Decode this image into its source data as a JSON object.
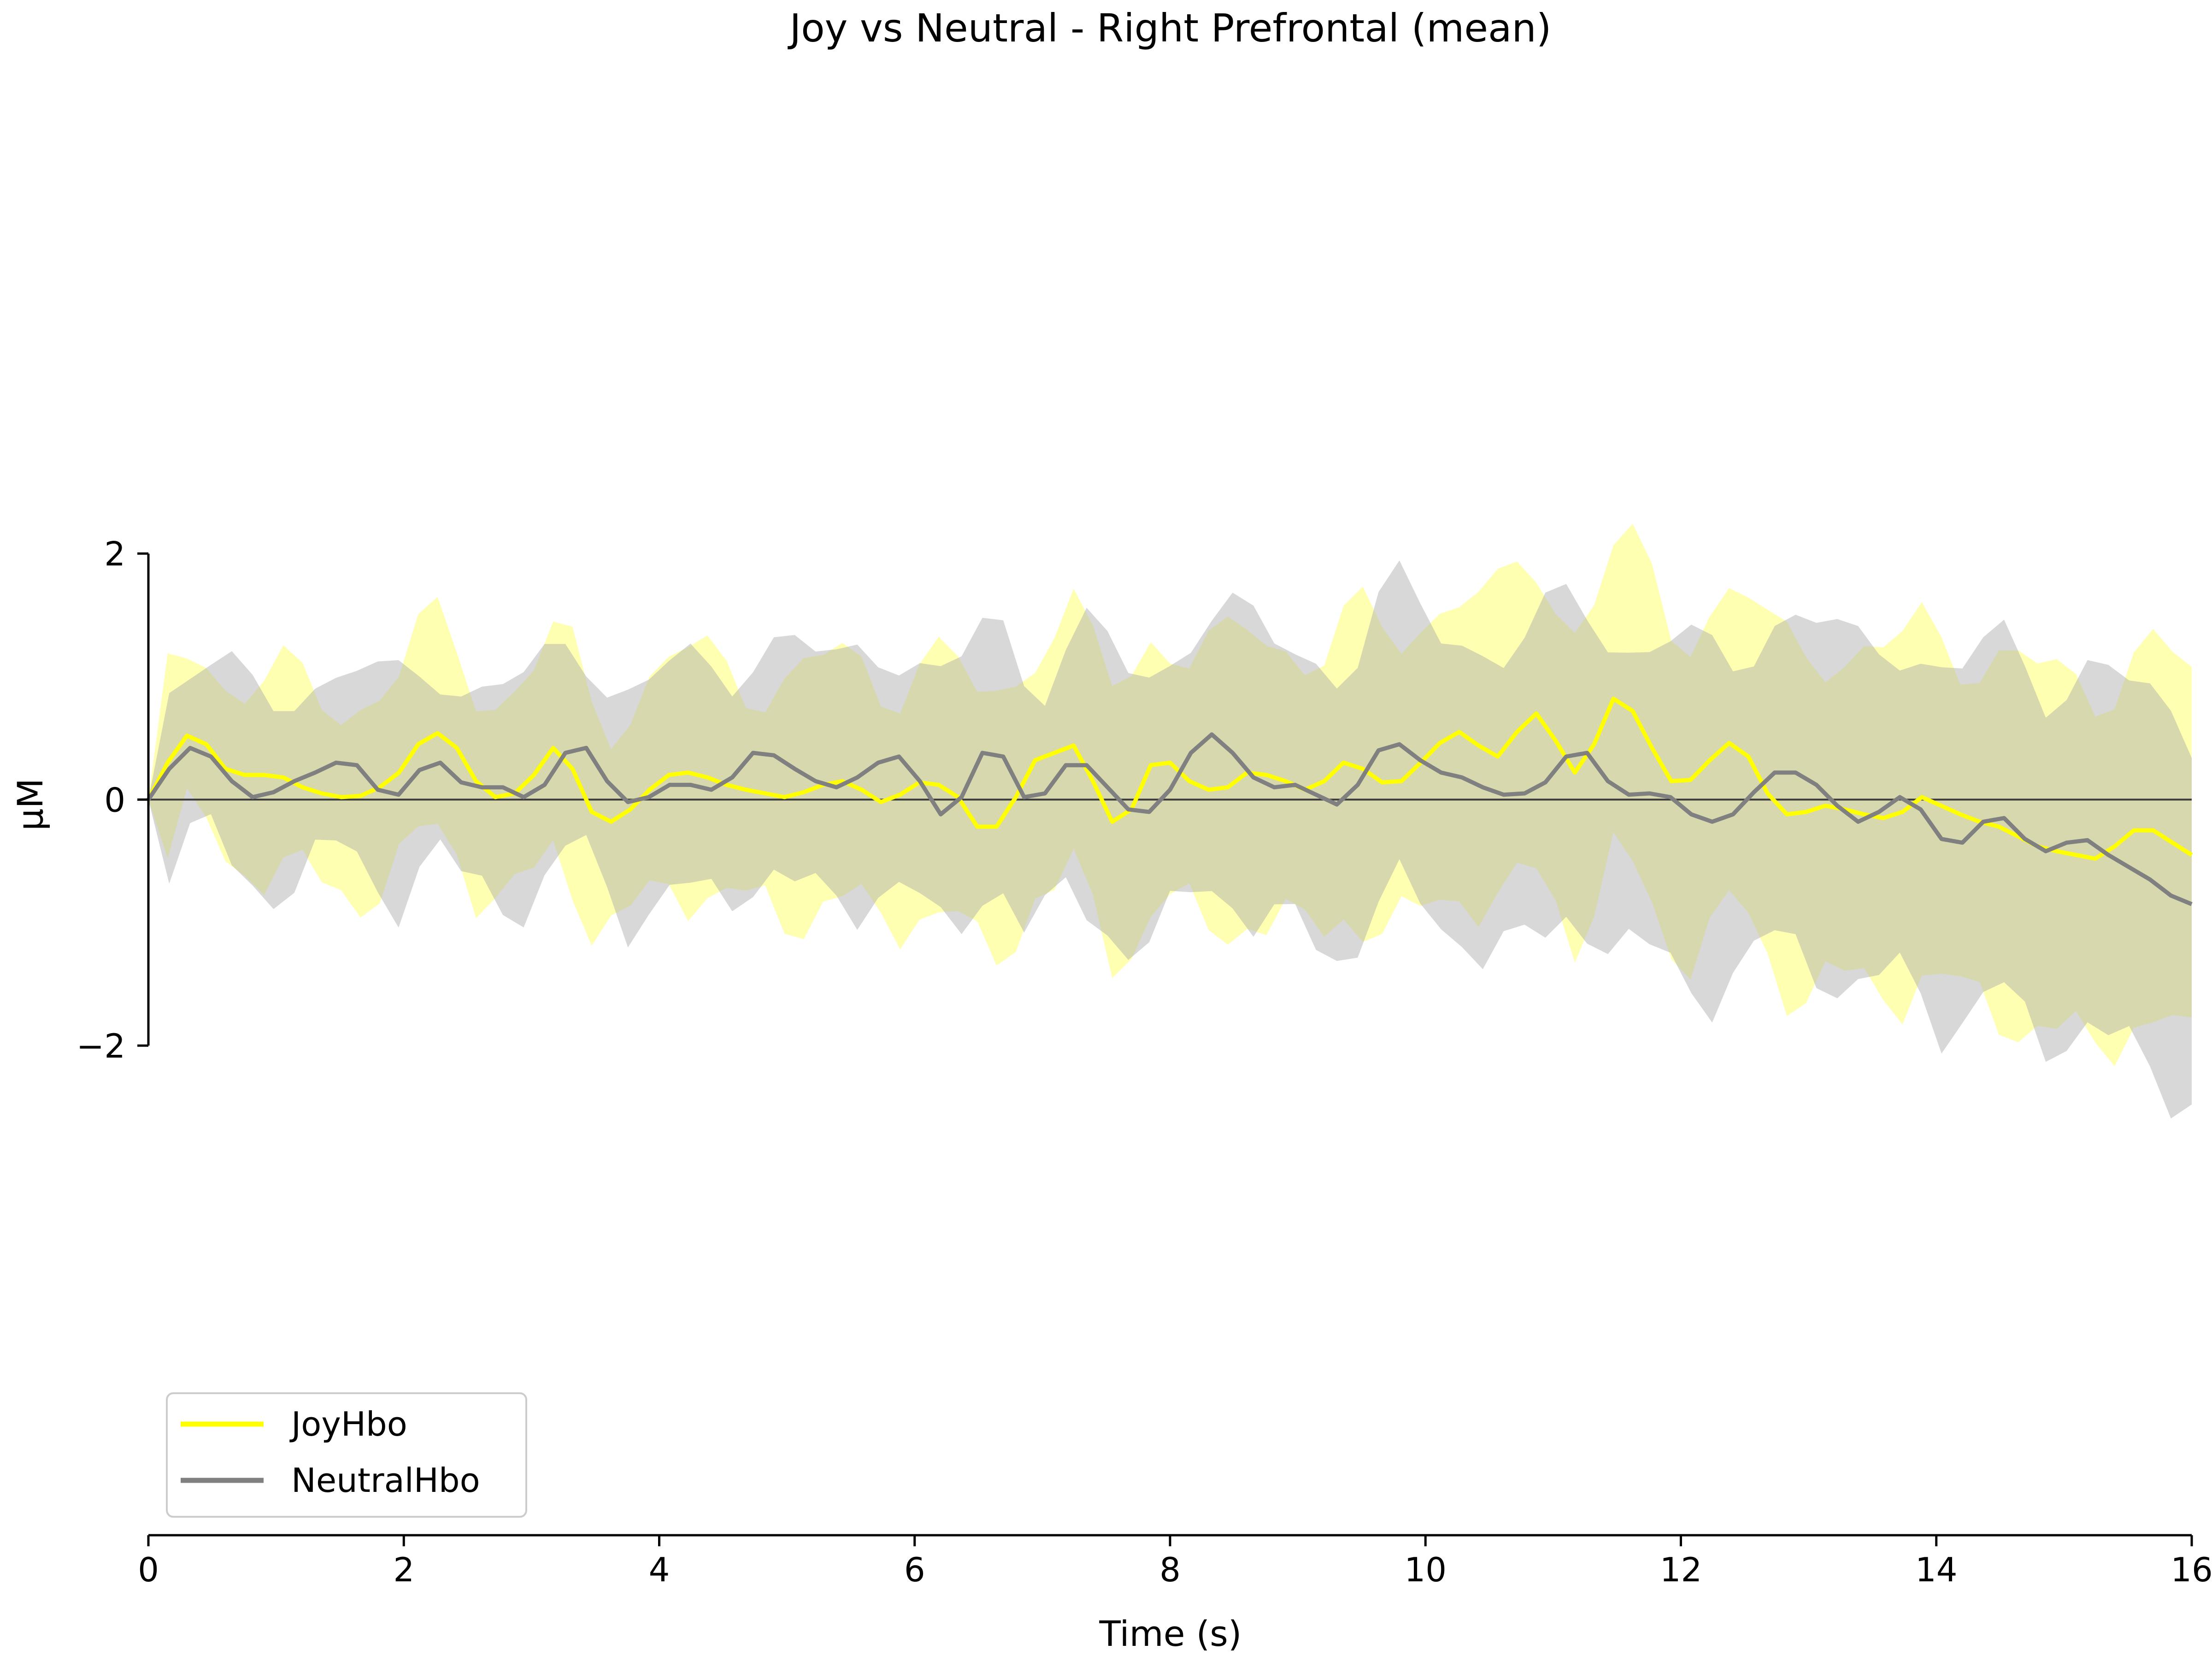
{
  "chart_data": {
    "type": "line",
    "title": "Joy vs Neutral - Right Prefrontal (mean)",
    "xlabel": "Time (s)",
    "ylabel": "µM",
    "xlim": [
      0,
      16
    ],
    "ylim": [
      -2,
      2
    ],
    "y_view": [
      -5.98,
      6.5
    ],
    "x_ticks": [
      0,
      2,
      4,
      6,
      8,
      10,
      12,
      14,
      16
    ],
    "y_ticks": [
      -2,
      0,
      2
    ],
    "y_tick_labels": [
      "−2",
      "0",
      "2"
    ],
    "grid": false,
    "legend_position": "lower-left",
    "zero_line": true,
    "x_step": 0.16,
    "series": [
      {
        "name": "JoyHbo",
        "color": "#ffff00",
        "band_color": "#ffff66",
        "values": [
          0,
          0.3,
          0.52,
          0.45,
          0.25,
          0.2,
          0.2,
          0.18,
          0.1,
          0.05,
          0.02,
          0.03,
          0.1,
          0.22,
          0.45,
          0.54,
          0.42,
          0.15,
          0.02,
          0.05,
          0.2,
          0.42,
          0.25,
          -0.1,
          -0.18,
          -0.08,
          0.08,
          0.2,
          0.22,
          0.18,
          0.12,
          0.08,
          0.05,
          0.02,
          0.06,
          0.12,
          0.15,
          0.08,
          -0.02,
          0.04,
          0.14,
          0.12,
          0.02,
          -0.22,
          -0.22,
          0.02,
          0.32,
          0.38,
          0.44,
          0.15,
          -0.18,
          -0.08,
          0.28,
          0.3,
          0.15,
          0.08,
          0.1,
          0.22,
          0.2,
          0.15,
          0.08,
          0.15,
          0.3,
          0.25,
          0.14,
          0.15,
          0.3,
          0.46,
          0.55,
          0.44,
          0.35,
          0.55,
          0.7,
          0.48,
          0.22,
          0.45,
          0.82,
          0.72,
          0.42,
          0.15,
          0.16,
          0.32,
          0.46,
          0.35,
          0.05,
          -0.12,
          -0.1,
          -0.05,
          -0.08,
          -0.12,
          -0.15,
          -0.1,
          0.02,
          -0.05,
          -0.12,
          -0.18,
          -0.22,
          -0.3,
          -0.38,
          -0.42,
          -0.45,
          -0.48,
          -0.38,
          -0.25,
          -0.25,
          -0.35,
          -0.45
        ]
      },
      {
        "name": "NeutralHbo",
        "color": "#808080",
        "band_color": "#a9a9a9",
        "values": [
          0,
          0.25,
          0.42,
          0.35,
          0.15,
          0.02,
          0.06,
          0.15,
          0.22,
          0.3,
          0.28,
          0.08,
          0.04,
          0.24,
          0.3,
          0.14,
          0.1,
          0.1,
          0.02,
          0.12,
          0.38,
          0.42,
          0.15,
          -0.02,
          0.02,
          0.12,
          0.12,
          0.08,
          0.18,
          0.38,
          0.36,
          0.25,
          0.15,
          0.1,
          0.18,
          0.3,
          0.35,
          0.15,
          -0.12,
          0.02,
          0.38,
          0.35,
          0.02,
          0.05,
          0.28,
          0.28,
          0.1,
          -0.08,
          -0.1,
          0.08,
          0.38,
          0.53,
          0.38,
          0.18,
          0.1,
          0.12,
          0.04,
          -0.04,
          0.12,
          0.4,
          0.45,
          0.32,
          0.22,
          0.18,
          0.1,
          0.04,
          0.05,
          0.14,
          0.35,
          0.38,
          0.15,
          0.04,
          0.05,
          0.02,
          -0.12,
          -0.18,
          -0.12,
          0.06,
          0.22,
          0.22,
          0.12,
          -0.05,
          -0.18,
          -0.1,
          0.02,
          -0.08,
          -0.32,
          -0.35,
          -0.18,
          -0.15,
          -0.32,
          -0.42,
          -0.35,
          -0.33,
          -0.45,
          -0.55,
          -0.65,
          -0.78,
          -0.85
        ]
      }
    ]
  }
}
